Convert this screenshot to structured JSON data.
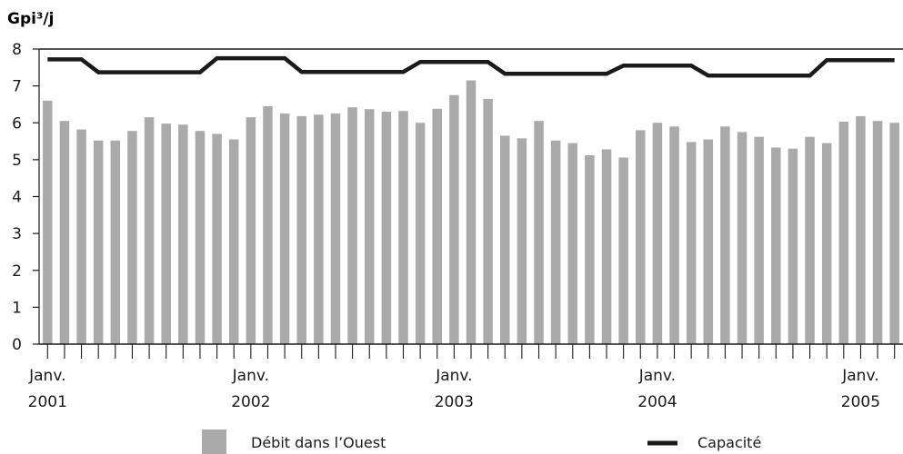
{
  "chart_data": {
    "type": "bar",
    "ylabel": "Gpi³/j",
    "ylim": [
      0,
      8
    ],
    "yticks": [
      0,
      1,
      2,
      3,
      4,
      5,
      6,
      7,
      8
    ],
    "grid": false,
    "legend_placement": "bottom",
    "x_tick_labels": [
      {
        "month_index": 0,
        "line1": "Janv.",
        "line2": "2001"
      },
      {
        "month_index": 12,
        "line1": "Janv.",
        "line2": "2002"
      },
      {
        "month_index": 24,
        "line1": "Janv.",
        "line2": "2003"
      },
      {
        "month_index": 36,
        "line1": "Janv.",
        "line2": "2004"
      },
      {
        "month_index": 48,
        "line1": "Janv.",
        "line2": "2005"
      }
    ],
    "series": [
      {
        "name": "Débit dans l’Ouest",
        "kind": "bar",
        "color": "#aaaaaa",
        "values": [
          6.6,
          6.05,
          5.82,
          5.52,
          5.52,
          5.78,
          6.15,
          5.98,
          5.95,
          5.78,
          5.7,
          5.55,
          6.15,
          6.45,
          6.25,
          6.18,
          6.22,
          6.25,
          6.42,
          6.37,
          6.3,
          6.32,
          6.0,
          6.38,
          6.75,
          7.15,
          6.65,
          5.65,
          5.58,
          6.05,
          5.52,
          5.45,
          5.12,
          5.28,
          5.06,
          5.8,
          6.0,
          5.9,
          5.48,
          5.55,
          5.9,
          5.75,
          5.62,
          5.33,
          5.3,
          5.62,
          5.45,
          6.03,
          6.18,
          6.05,
          6.0
        ]
      },
      {
        "name": "Capacité",
        "kind": "line",
        "color": "#1a1a1a",
        "values": [
          7.72,
          7.72,
          7.72,
          7.37,
          7.37,
          7.37,
          7.37,
          7.37,
          7.37,
          7.37,
          7.75,
          7.75,
          7.75,
          7.75,
          7.75,
          7.38,
          7.38,
          7.38,
          7.38,
          7.38,
          7.38,
          7.38,
          7.65,
          7.65,
          7.65,
          7.65,
          7.65,
          7.33,
          7.33,
          7.33,
          7.33,
          7.33,
          7.33,
          7.33,
          7.55,
          7.55,
          7.55,
          7.55,
          7.55,
          7.28,
          7.28,
          7.28,
          7.28,
          7.28,
          7.28,
          7.28,
          7.7,
          7.7,
          7.7,
          7.7,
          7.7
        ]
      }
    ]
  }
}
